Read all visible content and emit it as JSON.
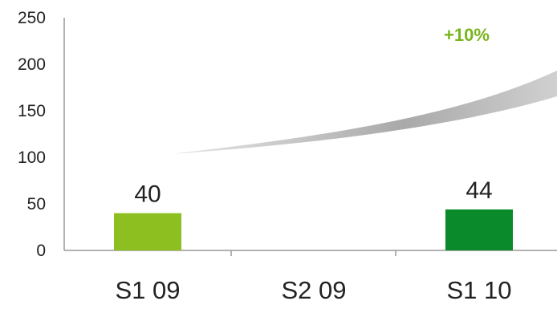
{
  "chart_data": {
    "type": "bar",
    "categories": [
      "S1 09",
      "S2 09",
      "S1 10"
    ],
    "values": [
      40,
      null,
      44
    ],
    "data_labels": [
      "40",
      "",
      "44"
    ],
    "bar_colors": [
      "#8cbf1f",
      null,
      "#0a8a2a"
    ],
    "yticks": [
      "0",
      "50",
      "100",
      "150",
      "200",
      "250"
    ],
    "ylim": [
      0,
      250
    ],
    "grid": false,
    "annotation": "+10%",
    "annotation_color": "#7ab51d",
    "arrow_color": "#bdbdbd"
  }
}
